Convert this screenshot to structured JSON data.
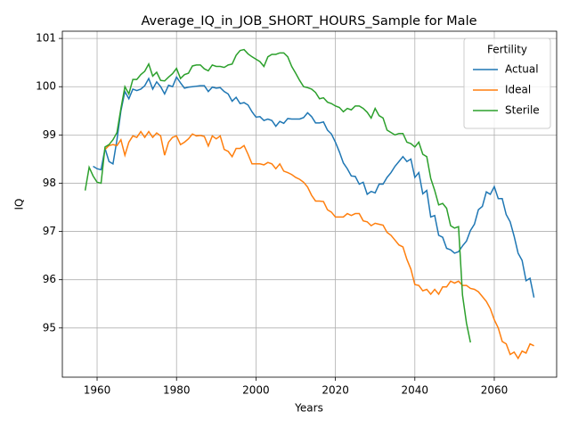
{
  "chart_data": {
    "type": "line",
    "title": "Average_IQ_in_JOB_SHORT_HOURS_Sample for Male",
    "x_label": "Years",
    "y_label": "IQ",
    "legend_title": "Fertility",
    "legend": "upper right",
    "grid": true,
    "xlim": [
      1951.25,
      2075.7
    ],
    "ylim": [
      93.98,
      101.15
    ],
    "xticks": [
      1960,
      1980,
      2000,
      2020,
      2040,
      2060
    ],
    "yticks": [
      95,
      96,
      97,
      98,
      99,
      100,
      101
    ],
    "x": [
      1957,
      1958,
      1959,
      1960,
      1961,
      1962,
      1963,
      1964,
      1965,
      1966,
      1967,
      1968,
      1969,
      1970,
      1971,
      1972,
      1973,
      1974,
      1975,
      1976,
      1977,
      1978,
      1979,
      1980,
      1981,
      1982,
      1983,
      1984,
      1985,
      1986,
      1987,
      1988,
      1989,
      1990,
      1991,
      1992,
      1993,
      1994,
      1995,
      1996,
      1997,
      1998,
      1999,
      2000,
      2001,
      2002,
      2003,
      2004,
      2005,
      2006,
      2007,
      2008,
      2009,
      2010,
      2011,
      2012,
      2013,
      2014,
      2015,
      2016,
      2017,
      2018,
      2019,
      2020,
      2021,
      2022,
      2023,
      2024,
      2025,
      2026,
      2027,
      2028,
      2029,
      2030,
      2031,
      2032,
      2033,
      2034,
      2035,
      2036,
      2037,
      2038,
      2039,
      2040,
      2041,
      2042,
      2043,
      2044,
      2045,
      2046,
      2047,
      2048,
      2049,
      2050,
      2051,
      2052,
      2053,
      2054,
      2055,
      2056,
      2057,
      2058,
      2059,
      2060,
      2061,
      2062,
      2063,
      2064,
      2065,
      2066,
      2067,
      2068,
      2069,
      2070
    ],
    "series": [
      {
        "name": "Actual",
        "color": "#1f77b4",
        "values": [
          null,
          null,
          98.35,
          98.3,
          98.28,
          98.72,
          98.45,
          98.4,
          98.9,
          99.5,
          99.9,
          99.75,
          99.95,
          99.92,
          99.95,
          100.02,
          100.17,
          99.95,
          100.1,
          100.0,
          99.85,
          100.03,
          100.0,
          100.2,
          100.08,
          99.97,
          99.99,
          100.0,
          100.01,
          100.02,
          100.02,
          99.9,
          99.99,
          99.97,
          99.98,
          99.9,
          99.85,
          99.7,
          99.78,
          99.65,
          99.67,
          99.62,
          99.48,
          99.37,
          99.38,
          99.3,
          99.33,
          99.3,
          99.18,
          99.28,
          99.24,
          99.34,
          99.33,
          99.33,
          99.33,
          99.36,
          99.46,
          99.38,
          99.25,
          99.25,
          99.27,
          99.1,
          99.02,
          98.85,
          98.65,
          98.42,
          98.3,
          98.15,
          98.14,
          97.98,
          98.02,
          97.77,
          97.83,
          97.8,
          97.98,
          97.98,
          98.12,
          98.22,
          98.35,
          98.45,
          98.55,
          98.45,
          98.5,
          98.12,
          98.22,
          97.78,
          97.85,
          97.3,
          97.33,
          96.92,
          96.88,
          96.65,
          96.62,
          96.55,
          96.58,
          96.7,
          96.8,
          97.02,
          97.15,
          97.45,
          97.52,
          97.82,
          97.77,
          97.93,
          97.68,
          97.68,
          97.35,
          97.2,
          96.9,
          96.55,
          96.4,
          95.98,
          96.03,
          95.63
        ]
      },
      {
        "name": "Ideal",
        "color": "#ff7f0e",
        "values": [
          null,
          null,
          null,
          null,
          null,
          98.7,
          98.78,
          98.8,
          98.78,
          98.9,
          98.58,
          98.85,
          98.98,
          98.95,
          99.07,
          98.95,
          99.07,
          98.95,
          99.04,
          98.98,
          98.58,
          98.85,
          98.95,
          98.98,
          98.8,
          98.85,
          98.92,
          99.02,
          98.98,
          98.99,
          98.97,
          98.77,
          98.98,
          98.92,
          98.98,
          98.7,
          98.66,
          98.55,
          98.72,
          98.72,
          98.78,
          98.6,
          98.4,
          98.4,
          98.4,
          98.38,
          98.43,
          98.4,
          98.3,
          98.4,
          98.25,
          98.22,
          98.18,
          98.12,
          98.08,
          98.02,
          97.92,
          97.75,
          97.63,
          97.63,
          97.62,
          97.45,
          97.4,
          97.3,
          97.3,
          97.3,
          97.37,
          97.33,
          97.37,
          97.37,
          97.22,
          97.2,
          97.12,
          97.17,
          97.15,
          97.13,
          96.98,
          96.92,
          96.82,
          96.72,
          96.68,
          96.42,
          96.22,
          95.9,
          95.88,
          95.77,
          95.8,
          95.7,
          95.8,
          95.7,
          95.85,
          95.85,
          95.97,
          95.93,
          95.97,
          95.88,
          95.88,
          95.82,
          95.8,
          95.75,
          95.65,
          95.55,
          95.4,
          95.17,
          95.0,
          94.72,
          94.67,
          94.45,
          94.5,
          94.37,
          94.52,
          94.48,
          94.67,
          94.63
        ]
      },
      {
        "name": "Sterile",
        "color": "#2ca02c",
        "values": [
          97.85,
          98.33,
          98.15,
          98.02,
          98.0,
          98.75,
          98.8,
          98.9,
          99.05,
          99.55,
          100.0,
          99.85,
          100.15,
          100.15,
          100.25,
          100.32,
          100.47,
          100.22,
          100.3,
          100.13,
          100.12,
          100.2,
          100.27,
          100.38,
          100.17,
          100.25,
          100.28,
          100.43,
          100.45,
          100.45,
          100.37,
          100.33,
          100.45,
          100.42,
          100.42,
          100.4,
          100.45,
          100.47,
          100.65,
          100.75,
          100.77,
          100.68,
          100.62,
          100.57,
          100.52,
          100.42,
          100.62,
          100.67,
          100.67,
          100.7,
          100.7,
          100.62,
          100.42,
          100.28,
          100.13,
          100.0,
          99.98,
          99.95,
          99.88,
          99.75,
          99.77,
          99.68,
          99.65,
          99.6,
          99.57,
          99.48,
          99.55,
          99.52,
          99.6,
          99.6,
          99.55,
          99.47,
          99.35,
          99.55,
          99.4,
          99.35,
          99.1,
          99.05,
          99.0,
          99.03,
          99.03,
          98.85,
          98.82,
          98.75,
          98.85,
          98.6,
          98.55,
          98.1,
          97.85,
          97.55,
          97.58,
          97.48,
          97.12,
          97.07,
          97.1,
          95.68,
          95.1,
          94.7,
          null,
          null,
          null,
          null,
          null,
          null,
          null,
          null,
          null,
          null,
          null,
          null,
          null,
          null,
          null,
          null
        ]
      }
    ]
  }
}
